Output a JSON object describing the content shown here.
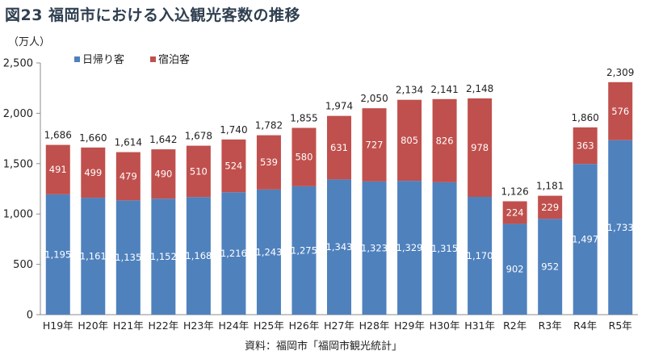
{
  "chart_data": {
    "type": "bar",
    "stacked": true,
    "title": "図23  福岡市における入込観光客数の推移",
    "unit_label": "（万人）",
    "categories": [
      "H19年",
      "H20年",
      "H21年",
      "H22年",
      "H23年",
      "H24年",
      "H25年",
      "H26年",
      "H27年",
      "H28年",
      "H29年",
      "H30年",
      "H31年",
      "R2年",
      "R3年",
      "R4年",
      "R5年"
    ],
    "series": [
      {
        "name": "日帰り客",
        "color": "#4f81bd",
        "values": [
          1195,
          1161,
          1135,
          1152,
          1168,
          1216,
          1243,
          1275,
          1343,
          1323,
          1329,
          1315,
          1170,
          902,
          952,
          1497,
          1733
        ],
        "labels": [
          "1,195",
          "1,161",
          "1,135",
          "1,152",
          "1,168",
          "1,216",
          "1,243",
          "1,275",
          "1,343",
          "1,323",
          "1,329",
          "1,315",
          "1,170",
          "902",
          "952",
          "1,497",
          "1,733"
        ]
      },
      {
        "name": "宿泊客",
        "color": "#c0504d",
        "values": [
          491,
          499,
          479,
          490,
          510,
          524,
          539,
          580,
          631,
          727,
          805,
          826,
          978,
          224,
          229,
          363,
          576
        ],
        "labels": [
          "491",
          "499",
          "479",
          "490",
          "510",
          "524",
          "539",
          "580",
          "631",
          "727",
          "805",
          "826",
          "978",
          "224",
          "229",
          "363",
          "576"
        ]
      }
    ],
    "total_labels": [
      "1,686",
      "1,660",
      "1,614",
      "1,642",
      "1,678",
      "1,740",
      "1,782",
      "1,855",
      "1,974",
      "2,050",
      "2,134",
      "2,141",
      "2,148",
      "1,126",
      "1,181",
      "1,860",
      "2,309"
    ],
    "y_ticks": [
      0,
      500,
      1000,
      1500,
      2000,
      2500
    ],
    "y_tick_labels": [
      "0",
      "500",
      "1,000",
      "1,500",
      "2,000",
      "2,500"
    ],
    "ylim": [
      0,
      2500
    ],
    "grid": false,
    "legend_position": "top-left"
  },
  "source": "資料：福岡市「福岡市観光統計」"
}
